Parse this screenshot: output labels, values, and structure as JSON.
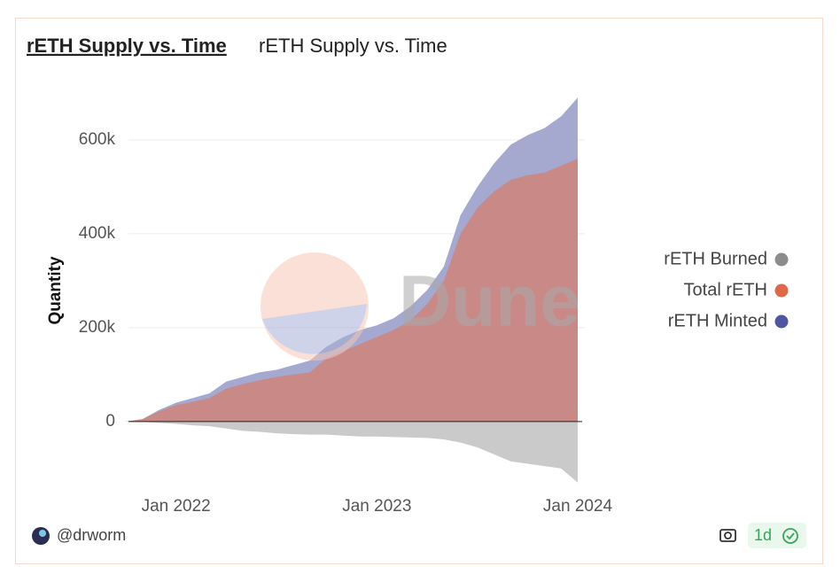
{
  "title": "rETH Supply vs. Time",
  "subtitle": "rETH Supply vs. Time",
  "watermark": "Dune",
  "footer": {
    "author": "@drworm",
    "age": "1d"
  },
  "chart_data": {
    "type": "area",
    "ylabel": "Quantity",
    "x": [
      "2021-10",
      "2021-11",
      "2021-12",
      "2022-01",
      "2022-02",
      "2022-03",
      "2022-04",
      "2022-05",
      "2022-06",
      "2022-07",
      "2022-08",
      "2022-09",
      "2022-10",
      "2022-11",
      "2022-12",
      "2023-01",
      "2023-02",
      "2023-03",
      "2023-04",
      "2023-05",
      "2023-06",
      "2023-07",
      "2023-08",
      "2023-09",
      "2023-10",
      "2023-11",
      "2023-12",
      "2024-01"
    ],
    "xlim": [
      "2021-10",
      "2024-01"
    ],
    "xticks": [
      {
        "value": "2022-01",
        "label": "Jan 2022"
      },
      {
        "value": "2023-01",
        "label": "Jan 2023"
      },
      {
        "value": "2024-01",
        "label": "Jan 2024"
      }
    ],
    "ylim": [
      -140000,
      700000
    ],
    "yticks": [
      {
        "value": 0,
        "label": "0"
      },
      {
        "value": 200000,
        "label": "200k"
      },
      {
        "value": 400000,
        "label": "400k"
      },
      {
        "value": 600000,
        "label": "600k"
      }
    ],
    "grid": true,
    "legend": "right",
    "series": [
      {
        "name": "rETH Burned",
        "color": "#8c8c8c",
        "values": [
          0,
          -1000,
          -3000,
          -5000,
          -8000,
          -10000,
          -15000,
          -20000,
          -22000,
          -25000,
          -27000,
          -28000,
          -28000,
          -30000,
          -32000,
          -32000,
          -33000,
          -34000,
          -35000,
          -38000,
          -45000,
          -55000,
          -70000,
          -85000,
          -90000,
          -95000,
          -100000,
          -130000
        ]
      },
      {
        "name": "Total rETH",
        "color": "#e0674a",
        "values": [
          0,
          5000,
          22000,
          35000,
          42000,
          50000,
          70000,
          80000,
          88000,
          95000,
          100000,
          105000,
          135000,
          150000,
          165000,
          180000,
          195000,
          215000,
          250000,
          300000,
          400000,
          455000,
          490000,
          515000,
          525000,
          530000,
          545000,
          560000
        ]
      },
      {
        "name": "rETH Minted",
        "color": "#4f55a0",
        "values": [
          0,
          5000,
          25000,
          40000,
          50000,
          60000,
          85000,
          95000,
          105000,
          110000,
          120000,
          130000,
          160000,
          180000,
          195000,
          205000,
          220000,
          245000,
          280000,
          330000,
          440000,
          500000,
          550000,
          590000,
          610000,
          625000,
          650000,
          690000
        ]
      }
    ]
  }
}
